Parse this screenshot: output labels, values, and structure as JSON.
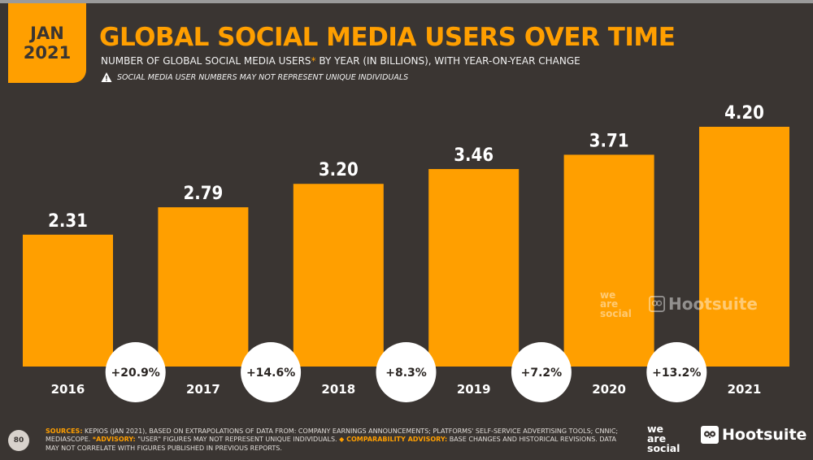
{
  "badge": {
    "line1": "JAN",
    "line2": "2021"
  },
  "title": "GLOBAL SOCIAL MEDIA USERS OVER TIME",
  "subtitle_pre": "NUMBER OF GLOBAL SOCIAL MEDIA USERS",
  "subtitle_ast": "*",
  "subtitle_post": " BY YEAR (IN BILLIONS), WITH YEAR-ON-YEAR CHANGE",
  "warning": "SOCIAL MEDIA USER NUMBERS MAY NOT REPRESENT UNIQUE INDIVIDUALS",
  "colors": {
    "accent": "#ff9f00",
    "background": "#3a3532",
    "text": "#ffffff",
    "bubble": "#ffffff",
    "bubble_text": "#2a2522"
  },
  "chart_data": {
    "type": "bar",
    "categories": [
      "2016",
      "2017",
      "2018",
      "2019",
      "2020",
      "2021"
    ],
    "values": [
      2.31,
      2.79,
      3.2,
      3.46,
      3.71,
      4.2
    ],
    "value_labels": [
      "2.31",
      "2.79",
      "3.20",
      "3.46",
      "3.71",
      "4.20"
    ],
    "changes": [
      "+20.9%",
      "+14.6%",
      "+8.3%",
      "+7.2%",
      "+13.2%"
    ],
    "title": "GLOBAL SOCIAL MEDIA USERS OVER TIME",
    "xlabel": "",
    "ylabel": "",
    "unit": "BILLIONS",
    "ylim": [
      0,
      4.8
    ]
  },
  "footer": {
    "page_number": "80",
    "sources_label": "SOURCES:",
    "sources_text": " KEPIOS (JAN 2021), BASED ON EXTRAPOLATIONS OF DATA FROM: COMPANY EARNINGS ANNOUNCEMENTS; PLATFORMS' SELF-SERVICE ADVERTISING TOOLS; CNNIC; MEDIASCOPE.",
    "advisory_label": "*ADVISORY:",
    "advisory_text": " \"USER\" FIGURES MAY NOT REPRESENT UNIQUE INDIVIDUALS. ",
    "comparability_label": "◆ COMPARABILITY ADVISORY:",
    "comparability_text": " BASE CHANGES AND HISTORICAL REVISIONS. DATA MAY NOT CORRELATE WITH FIGURES PUBLISHED IN PREVIOUS REPORTS."
  },
  "logos": {
    "we": "we",
    "are": "are",
    "social": "social",
    "hootsuite": "Hootsuite"
  }
}
